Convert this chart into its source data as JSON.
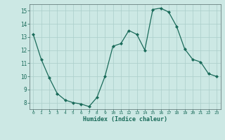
{
  "x": [
    0,
    1,
    2,
    3,
    4,
    5,
    6,
    7,
    8,
    9,
    10,
    11,
    12,
    13,
    14,
    15,
    16,
    17,
    18,
    19,
    20,
    21,
    22,
    23
  ],
  "y": [
    13.2,
    11.3,
    9.9,
    8.7,
    8.2,
    8.0,
    7.9,
    7.7,
    8.4,
    10.0,
    12.3,
    12.5,
    13.5,
    13.2,
    12.0,
    15.1,
    15.2,
    14.9,
    13.8,
    12.1,
    11.3,
    11.1,
    10.2,
    10.0
  ],
  "xlabel": "Humidex (Indice chaleur)",
  "ylim": [
    7.5,
    15.5
  ],
  "xlim": [
    -0.5,
    23.5
  ],
  "yticks": [
    8,
    9,
    10,
    11,
    12,
    13,
    14,
    15
  ],
  "xticks": [
    0,
    1,
    2,
    3,
    4,
    5,
    6,
    7,
    8,
    9,
    10,
    11,
    12,
    13,
    14,
    15,
    16,
    17,
    18,
    19,
    20,
    21,
    22,
    23
  ],
  "line_color": "#1a6b5a",
  "marker_color": "#1a6b5a",
  "bg_color": "#cce8e4",
  "grid_color": "#aaceca",
  "fig_bg": "#cce8e4"
}
